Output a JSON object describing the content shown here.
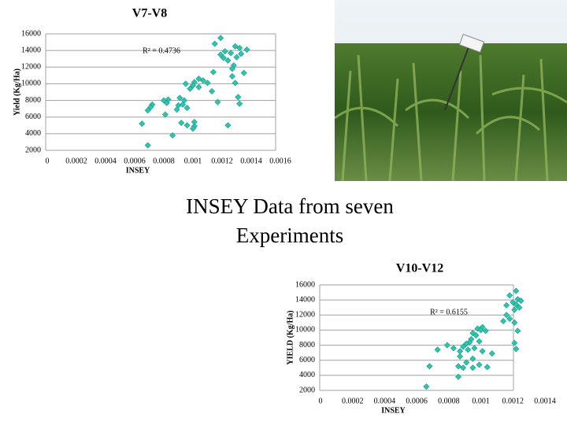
{
  "title": "INSEY Data from seven Experiments",
  "chart_data": [
    {
      "type": "scatter",
      "title": "V7-V8",
      "x_label": "INSEY",
      "y_label": "Yield (Kg/Ha)",
      "annotation": "R² = 0.4736",
      "color": "#2ec4b0",
      "grid": true,
      "xlim": [
        0,
        0.0016
      ],
      "xticks": [
        0,
        0.0002,
        0.0004,
        0.0006,
        0.0008,
        0.001,
        0.0012,
        0.0014,
        0.0016
      ],
      "ylim": [
        2000,
        16000
      ],
      "yticks": [
        2000,
        4000,
        6000,
        8000,
        10000,
        12000,
        14000,
        16000
      ],
      "x": [
        0.00119,
        0.00115,
        0.00129,
        0.00132,
        0.00137,
        0.00122,
        0.00119,
        0.00126,
        0.0013,
        0.00133,
        0.00121,
        0.00124,
        0.00128,
        0.00127,
        0.00135,
        0.00114,
        0.00127,
        0.00129,
        0.00095,
        0.00101,
        0.00104,
        0.00107,
        0.0011,
        0.001,
        0.00098,
        0.00104,
        0.00113,
        0.00091,
        0.00094,
        0.00083,
        0.0008,
        0.00082,
        0.0009,
        0.00096,
        0.00093,
        0.00072,
        0.00071,
        0.00069,
        0.00089,
        0.00081,
        0.00131,
        0.00132,
        0.00117,
        0.00065,
        0.00092,
        0.00101,
        0.00101,
        0.001,
        0.00096,
        0.00124,
        0.00086,
        0.00069
      ],
      "values": [
        15500,
        14800,
        14500,
        14300,
        14100,
        13900,
        13500,
        13700,
        13200,
        13600,
        13100,
        12800,
        12200,
        11800,
        11300,
        11400,
        10900,
        10100,
        10000,
        10200,
        10600,
        10400,
        10100,
        9800,
        9400,
        9600,
        9100,
        8300,
        8000,
        8100,
        8000,
        7700,
        7400,
        7100,
        7500,
        7500,
        7200,
        6800,
        6900,
        6300,
        8400,
        7600,
        7800,
        5200,
        5300,
        5400,
        4900,
        4600,
        5000,
        5000,
        3800,
        2600
      ]
    },
    {
      "type": "scatter",
      "title": "V10-V12",
      "x_label": "INSEY",
      "y_label": "YIELD (Kg/Ha)",
      "annotation": "R² = 0.6155",
      "color": "#2ec4b0",
      "grid": true,
      "xlim": [
        0,
        0.0014
      ],
      "xticks": [
        0,
        0.0002,
        0.0004,
        0.0006,
        0.0008,
        0.001,
        0.0012,
        0.0014
      ],
      "ylim": [
        2000,
        16000
      ],
      "yticks": [
        2000,
        4000,
        6000,
        8000,
        10000,
        12000,
        14000,
        16000
      ],
      "x": [
        0.00122,
        0.00118,
        0.00123,
        0.00125,
        0.0012,
        0.00116,
        0.00122,
        0.00124,
        0.00121,
        0.00116,
        0.00118,
        0.00114,
        0.00121,
        0.00123,
        0.00101,
        0.00098,
        0.001,
        0.00095,
        0.00103,
        0.00097,
        0.00094,
        0.00093,
        0.00099,
        0.00091,
        0.00089,
        0.00083,
        0.00079,
        0.00073,
        0.00092,
        0.00087,
        0.00096,
        0.00121,
        0.00122,
        0.00101,
        0.00107,
        0.00087,
        0.00095,
        0.00091,
        0.00086,
        0.00099,
        0.00095,
        0.00089,
        0.00104,
        0.00068,
        0.00086,
        0.00066
      ],
      "values": [
        15200,
        14600,
        14100,
        13900,
        13700,
        13300,
        13400,
        13000,
        12700,
        12000,
        11500,
        11200,
        11000,
        9900,
        10400,
        10200,
        10000,
        9600,
        9900,
        9300,
        8800,
        8400,
        8500,
        8200,
        7800,
        7600,
        8000,
        7400,
        7400,
        7200,
        7600,
        8300,
        7500,
        7200,
        6900,
        6500,
        6200,
        5700,
        5200,
        5400,
        5000,
        5000,
        5100,
        5200,
        3800,
        2500
      ]
    }
  ]
}
